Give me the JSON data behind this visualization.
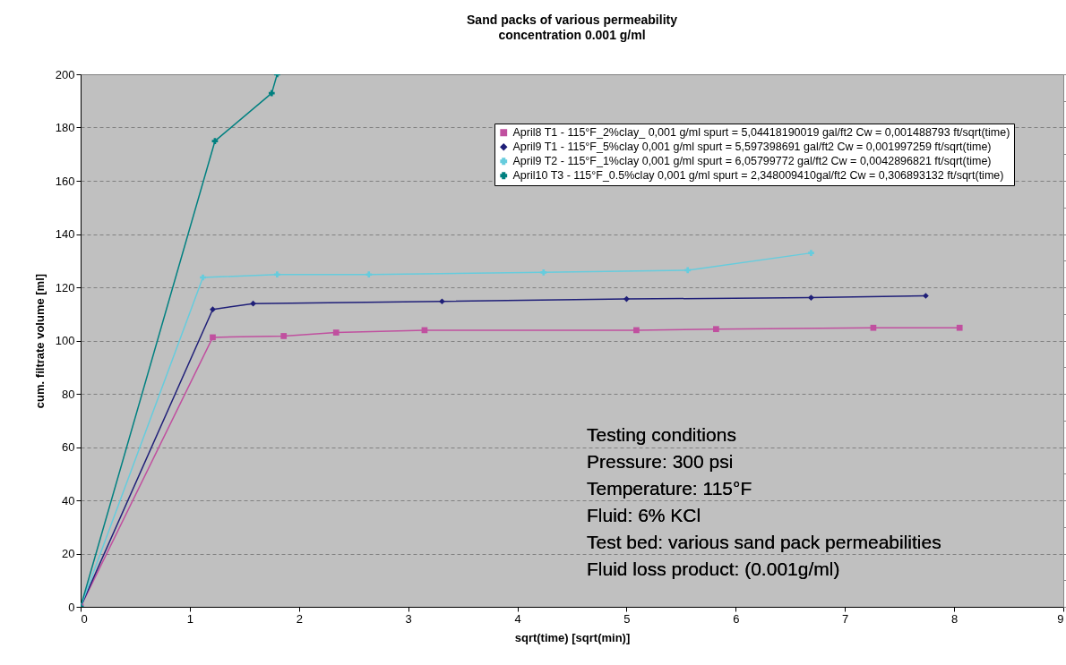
{
  "chart_data": {
    "type": "line",
    "title": "Sand packs of various permeability",
    "subtitle": "concentration  0.001 g/ml",
    "xlabel": "sqrt(time) [sqrt(min)]",
    "ylabel": "cum. filtrate volume [ml]",
    "xlim": [
      0,
      9
    ],
    "xticks": [
      0,
      1,
      2,
      3,
      4,
      5,
      6,
      7,
      8,
      9
    ],
    "ylim": [
      0,
      200
    ],
    "yticks": [
      0,
      20,
      40,
      60,
      80,
      100,
      120,
      140,
      160,
      180,
      200
    ],
    "grid": "y",
    "legend": "top right",
    "series": [
      {
        "name": "April8 T1 - 115°F_2%clay_ 0,001 g/ml spurt = 5,04418190019 gal/ft2 Cw = 0,001488793 ft/sqrt(time)",
        "color": "#c0509f",
        "marker": "square",
        "x": [
          0,
          1.21,
          1.86,
          2.34,
          3.15,
          5.09,
          5.82,
          7.26,
          8.05
        ],
        "values": [
          0,
          101.2,
          101.7,
          103,
          103.9,
          103.9,
          104.3,
          104.8,
          104.8
        ]
      },
      {
        "name": "April9 T1 - 115°F_5%clay 0,001 g/ml spurt = 5,597398691 gal/ft2 Cw = 0,001997259 ft/sqrt(time)",
        "color": "#1f1f78",
        "marker": "diamond",
        "x": [
          0,
          1.21,
          1.58,
          3.31,
          5.0,
          6.69,
          7.74
        ],
        "values": [
          0,
          111.7,
          113.9,
          114.7,
          115.6,
          116.1,
          116.8
        ]
      },
      {
        "name": "April9 T2 - 115°F_1%clay 0,001 g/ml spurt = 6,05799772 gal/ft2 Cw = 0,0042896821 ft/sqrt(time)",
        "color": "#66ccdd",
        "marker": "cross",
        "x": [
          0,
          1.12,
          1.8,
          2.64,
          4.24,
          5.56,
          6.69
        ],
        "values": [
          0,
          123.7,
          124.8,
          124.8,
          125.6,
          126.4,
          132.9
        ]
      },
      {
        "name": "April10 T3 - 115°F_0.5%clay 0,001 g/ml spurt = 2,348009410gal/ft2 Cw = 0,306893132 ft/sqrt(time)",
        "color": "#008080",
        "marker": "cross",
        "x": [
          0,
          1.23,
          1.75,
          1.8
        ],
        "values": [
          0,
          174.9,
          192.9,
          200
        ]
      }
    ],
    "annotations": [
      "Testing conditions",
      "Pressure: 300 psi",
      "Temperature: 115°F",
      "Fluid: 6% KCl",
      "Test bed:  various sand pack permeabilities",
      "Fluid loss product: (0.001g/ml)"
    ]
  }
}
